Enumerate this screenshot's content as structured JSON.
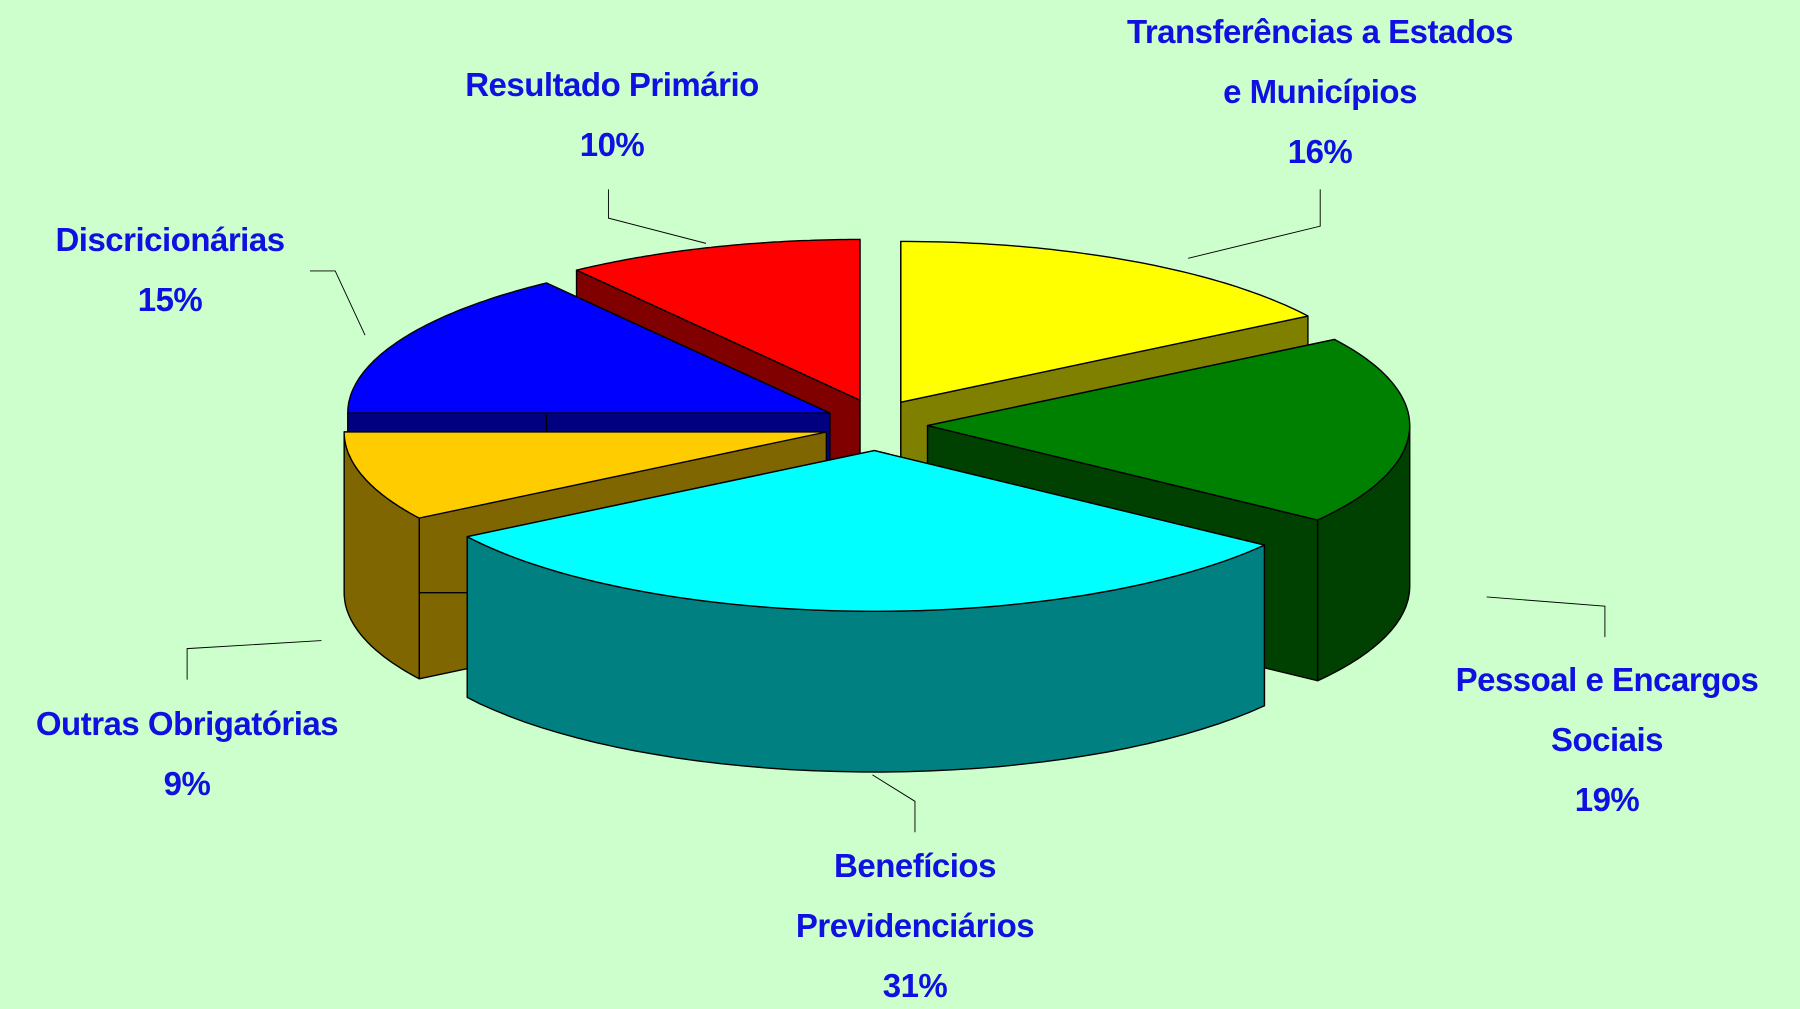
{
  "chart_data": {
    "type": "pie3d",
    "labels": [
      "Transferências a Estados e Municípios",
      "Pessoal e Encargos Sociais",
      "Benefícios Previdenciários",
      "Outras Obrigatórias",
      "Discricionárias",
      "Resultado Primário"
    ],
    "values": [
      16,
      19,
      31,
      9,
      15,
      10
    ],
    "value_labels": [
      "16%",
      "19%",
      "31%",
      "9%",
      "15%",
      "10%"
    ],
    "colors": [
      "#ffff00",
      "#008000",
      "#00ffff",
      "#ffcc00",
      "#0000ff",
      "#ff0000"
    ]
  }
}
